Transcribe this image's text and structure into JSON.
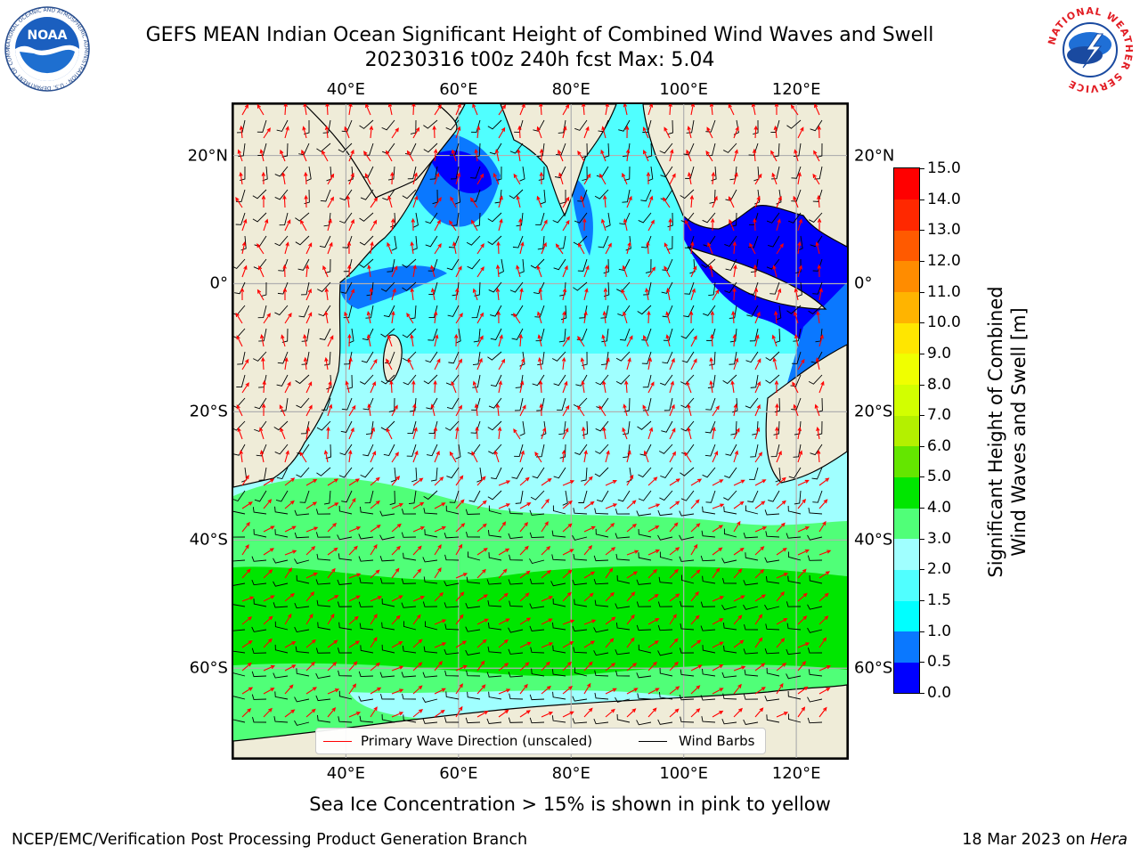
{
  "title": {
    "line1": "GEFS MEAN Indian Ocean Significant Height of Combined Wind Waves and Swell",
    "line2": "20230316 t00z 240h fcst   Max: 5.04"
  },
  "logos": {
    "noaa": {
      "text": "NOAA",
      "ring_text": "NATIONAL OCEANIC AND ATMOSPHERIC ADMINISTRATION · U.S. DEPARTMENT OF COMMERCE",
      "icon": "noaa-logo"
    },
    "nws": {
      "ring_text": "NATIONAL WEATHER SERVICE",
      "icon": "nws-logo"
    }
  },
  "map": {
    "lon_ticks_top": [
      "40°E",
      "60°E",
      "80°E",
      "100°E",
      "120°E"
    ],
    "lon_ticks_bottom": [
      "40°E",
      "60°E",
      "80°E",
      "100°E",
      "120°E"
    ],
    "lat_ticks_left": [
      "20°N",
      "0°",
      "20°S",
      "40°S",
      "60°S"
    ],
    "lat_ticks_right": [
      "20°N",
      "0°",
      "20°S",
      "40°S",
      "60°S"
    ],
    "lon_values": [
      40,
      60,
      80,
      100,
      120
    ],
    "lat_values": [
      20,
      0,
      -20,
      -40,
      -60
    ],
    "land_color": "#efecd8",
    "grid_color": "#b0b0b0"
  },
  "legend": {
    "wave_direction": {
      "label": "Primary Wave Direction (unscaled)",
      "color": "#ff0000"
    },
    "wind_barbs": {
      "label": "Wind Barbs",
      "color": "#000000"
    }
  },
  "colorbar": {
    "label_line1": "Significant Height of Combined",
    "label_line2": "Wind Waves and Swell [m]",
    "ticks": [
      "0.0",
      "0.5",
      "1.0",
      "1.5",
      "2.0",
      "3.0",
      "4.0",
      "5.0",
      "6.0",
      "7.0",
      "8.0",
      "9.0",
      "10.0",
      "11.0",
      "12.0",
      "13.0",
      "14.0",
      "15.0"
    ],
    "colors": [
      "#0000ff",
      "#0a78ff",
      "#00ffff",
      "#50ffff",
      "#a0ffff",
      "#50ff78",
      "#00e600",
      "#64e600",
      "#b4f000",
      "#d2ff00",
      "#f0ff00",
      "#ffe600",
      "#ffb400",
      "#ff8c00",
      "#ff5a00",
      "#ff2800",
      "#ff0000"
    ]
  },
  "chart_data": {
    "type": "heatmap",
    "title": "GEFS MEAN Indian Ocean Significant Height of Combined Wind Waves and Swell",
    "subtitle": "20230316 t00z 240h fcst   Max: 5.04",
    "variable": "Significant Height of Combined Wind Waves and Swell [m]",
    "max_value": 5.04,
    "xlim": [
      20,
      129
    ],
    "ylim": [
      -74,
      28
    ],
    "color_scale_range": [
      0,
      15
    ],
    "grid": true,
    "legend_placement": "bottom-center"
  },
  "notes": {
    "sea_ice": "Sea Ice Concentration > 15% is shown in pink to yellow"
  },
  "footer": {
    "left": "NCEP/EMC/Verification Post Processing Product Generation Branch",
    "right_prefix": "18 Mar 2023 on ",
    "right_machine": "Hera"
  }
}
